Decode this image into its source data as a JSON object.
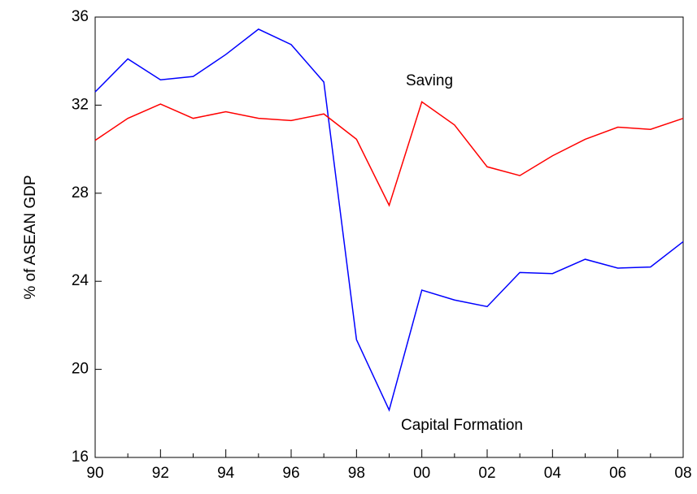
{
  "chart_data": {
    "type": "line",
    "y_label": "% of ASEAN GDP",
    "categories": [
      "90",
      null,
      "92",
      null,
      "94",
      null,
      "96",
      null,
      "98",
      null,
      "00",
      null,
      "02",
      null,
      "04",
      null,
      "06",
      null,
      "08"
    ],
    "series": [
      {
        "name": "Capital Formation",
        "color": "#0000ff",
        "values": [
          32.6,
          34.1,
          33.15,
          33.3,
          34.3,
          35.45,
          34.75,
          33.05,
          21.35,
          18.15,
          23.6,
          23.15,
          22.85,
          24.4,
          24.35,
          25.0,
          24.6,
          24.65,
          25.8
        ]
      },
      {
        "name": "Saving",
        "color": "#ff0000",
        "values": [
          30.4,
          31.4,
          32.05,
          31.4,
          31.7,
          31.4,
          31.3,
          31.6,
          30.45,
          27.45,
          32.15,
          31.1,
          29.2,
          28.8,
          29.7,
          30.45,
          31.0,
          30.9,
          31.4
        ]
      }
    ],
    "ylim": [
      16,
      36
    ],
    "yticks": [
      16,
      20,
      24,
      28,
      32,
      36
    ],
    "grid": false
  }
}
